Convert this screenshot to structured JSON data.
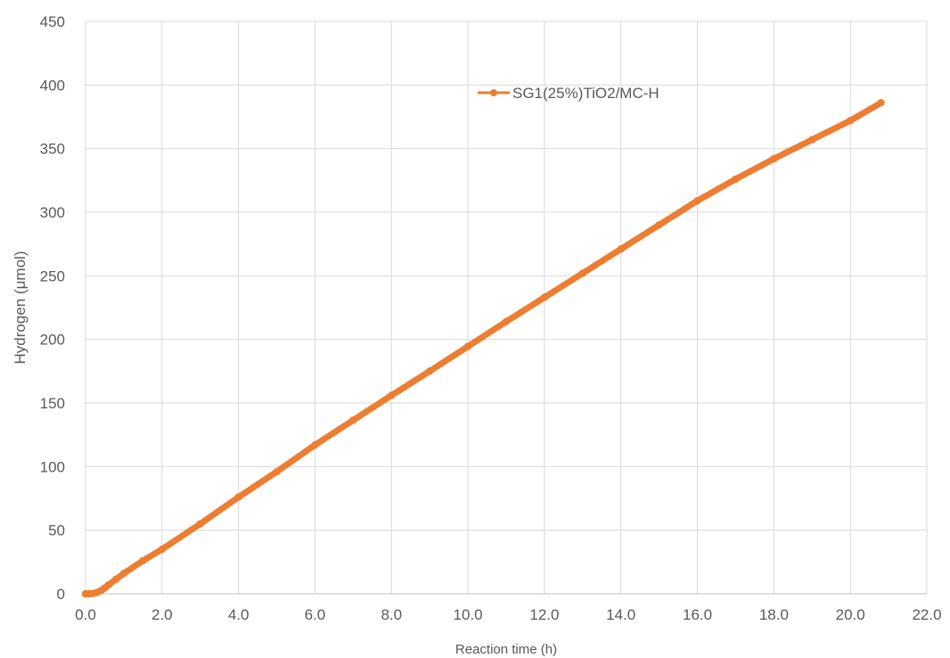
{
  "chart_data": {
    "type": "line",
    "title": "",
    "xlabel": "Reaction time (h)",
    "ylabel": "Hydrogen (μmol)",
    "xlim": [
      0,
      22
    ],
    "ylim": [
      0,
      450
    ],
    "x_ticks": [
      "0.0",
      "2.0",
      "4.0",
      "6.0",
      "8.0",
      "10.0",
      "12.0",
      "14.0",
      "16.0",
      "18.0",
      "20.0",
      "22.0"
    ],
    "y_ticks": [
      "0",
      "50",
      "100",
      "150",
      "200",
      "250",
      "300",
      "350",
      "400",
      "450"
    ],
    "grid": true,
    "legend_position": "top-right",
    "series": [
      {
        "name": "SG1(25%)TiO2/MC-H",
        "color": "#ED7D31",
        "marker": "circle",
        "x": [
          0,
          0.1,
          0.2,
          0.3,
          0.4,
          0.5,
          0.6,
          0.8,
          1.0,
          1.5,
          2.0,
          3.0,
          4.0,
          5.0,
          6.0,
          7.0,
          8.0,
          9.0,
          10.0,
          11.0,
          12.0,
          13.0,
          14.0,
          15.0,
          16.0,
          17.0,
          18.0,
          19.0,
          20.0,
          20.8
        ],
        "y": [
          0,
          0,
          0.3,
          1,
          2.5,
          4.5,
          7,
          11.5,
          16,
          26,
          35,
          55,
          76,
          96,
          117,
          136.5,
          156,
          175,
          194.5,
          214,
          233,
          252,
          271,
          290,
          309,
          326,
          342,
          357,
          372,
          386
        ]
      }
    ]
  }
}
